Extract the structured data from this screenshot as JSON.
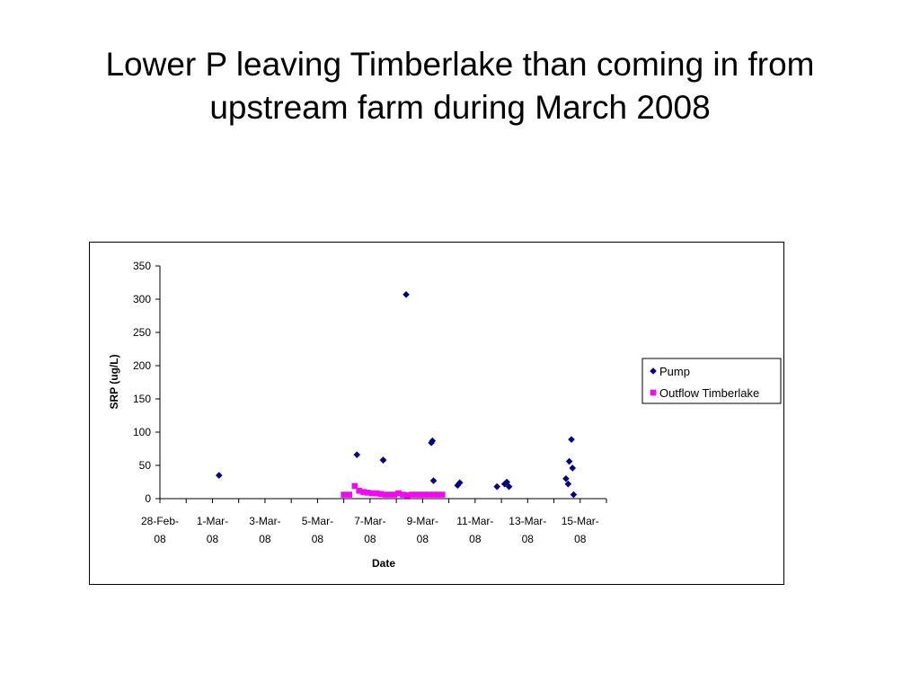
{
  "slide": {
    "title_lines": [
      "Lower P leaving Timberlake than coming in from",
      "upstream farm during March 2008"
    ]
  },
  "chart_data": {
    "type": "scatter",
    "xlabel": "Date",
    "ylabel": "SRP (ug/L)",
    "x_axis_type": "date",
    "xlim": [
      "2008-02-28",
      "2008-03-16"
    ],
    "ylim": [
      0,
      350
    ],
    "y_ticks": [
      0,
      50,
      100,
      150,
      200,
      250,
      300,
      350
    ],
    "x_ticks": [
      {
        "date": "2008-02-28",
        "label": [
          "28-Feb-",
          "08"
        ]
      },
      {
        "date": "2008-03-01",
        "label": [
          "1-Mar-",
          "08"
        ]
      },
      {
        "date": "2008-03-03",
        "label": [
          "3-Mar-",
          "08"
        ]
      },
      {
        "date": "2008-03-05",
        "label": [
          "5-Mar-",
          "08"
        ]
      },
      {
        "date": "2008-03-07",
        "label": [
          "7-Mar-",
          "08"
        ]
      },
      {
        "date": "2008-03-09",
        "label": [
          "9-Mar-",
          "08"
        ]
      },
      {
        "date": "2008-03-11",
        "label": [
          "11-Mar-",
          "08"
        ]
      },
      {
        "date": "2008-03-13",
        "label": [
          "13-Mar-",
          "08"
        ]
      },
      {
        "date": "2008-03-15",
        "label": [
          "15-Mar-",
          "08"
        ]
      }
    ],
    "grid": false,
    "legend_position": "right",
    "series": [
      {
        "name": "Pump",
        "marker": "diamond",
        "color": "#000080",
        "points": [
          {
            "x": "2008-03-01 06:00",
            "y": 35
          },
          {
            "x": "2008-03-06 12:00",
            "y": 66
          },
          {
            "x": "2008-03-07 12:00",
            "y": 58
          },
          {
            "x": "2008-03-07 12:00",
            "y": 58
          },
          {
            "x": "2008-03-08 09:00",
            "y": 307
          },
          {
            "x": "2008-03-09 08:00",
            "y": 84
          },
          {
            "x": "2008-03-09 09:00",
            "y": 87
          },
          {
            "x": "2008-03-09 10:00",
            "y": 27
          },
          {
            "x": "2008-03-10 08:00",
            "y": 20
          },
          {
            "x": "2008-03-10 10:00",
            "y": 24
          },
          {
            "x": "2008-03-11 20:00",
            "y": 18
          },
          {
            "x": "2008-03-12 03:00",
            "y": 22
          },
          {
            "x": "2008-03-12 05:00",
            "y": 25
          },
          {
            "x": "2008-03-12 07:00",
            "y": 18
          },
          {
            "x": "2008-03-14 11:00",
            "y": 30
          },
          {
            "x": "2008-03-14 13:00",
            "y": 22
          },
          {
            "x": "2008-03-14 14:00",
            "y": 56
          },
          {
            "x": "2008-03-14 16:00",
            "y": 89
          },
          {
            "x": "2008-03-14 17:00",
            "y": 46
          },
          {
            "x": "2008-03-14 18:00",
            "y": 6
          }
        ]
      },
      {
        "name": "Outflow Timberlake",
        "marker": "square",
        "color": "#ff00ff",
        "points": [
          {
            "x": "2008-03-06 00:00",
            "y": 6
          },
          {
            "x": "2008-03-06 05:00",
            "y": 6
          },
          {
            "x": "2008-03-06 10:00",
            "y": 19
          },
          {
            "x": "2008-03-06 14:00",
            "y": 12
          },
          {
            "x": "2008-03-06 18:00",
            "y": 10
          },
          {
            "x": "2008-03-06 22:00",
            "y": 9
          },
          {
            "x": "2008-03-07 02:00",
            "y": 8
          },
          {
            "x": "2008-03-07 06:00",
            "y": 8
          },
          {
            "x": "2008-03-07 10:00",
            "y": 7
          },
          {
            "x": "2008-03-07 14:00",
            "y": 6
          },
          {
            "x": "2008-03-07 18:00",
            "y": 6
          },
          {
            "x": "2008-03-07 22:00",
            "y": 6
          },
          {
            "x": "2008-03-08 02:00",
            "y": 8
          },
          {
            "x": "2008-03-08 06:00",
            "y": 6
          },
          {
            "x": "2008-03-08 10:00",
            "y": 5
          },
          {
            "x": "2008-03-08 14:00",
            "y": 6
          },
          {
            "x": "2008-03-08 18:00",
            "y": 6
          },
          {
            "x": "2008-03-08 22:00",
            "y": 6
          },
          {
            "x": "2008-03-09 02:00",
            "y": 6
          },
          {
            "x": "2008-03-09 06:00",
            "y": 6
          },
          {
            "x": "2008-03-09 10:00",
            "y": 6
          },
          {
            "x": "2008-03-09 14:00",
            "y": 6
          },
          {
            "x": "2008-03-09 18:00",
            "y": 6
          }
        ]
      }
    ]
  }
}
